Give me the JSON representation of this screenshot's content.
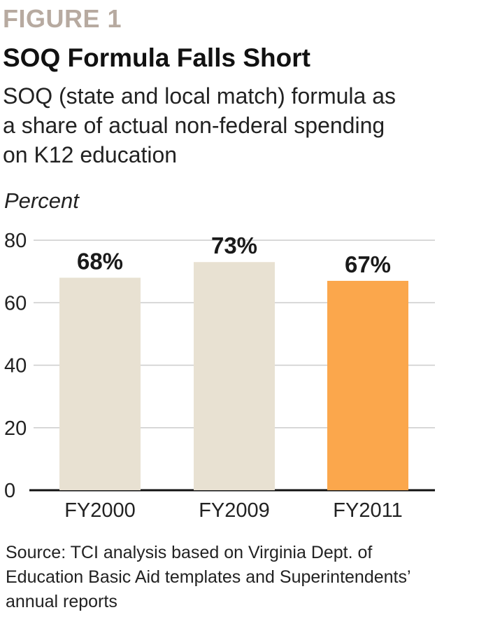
{
  "header": {
    "figure_label": "FIGURE 1",
    "title": "SOQ Formula Falls Short",
    "subtitle_lines": [
      "SOQ (state and local match) formula as",
      "a share of actual non-federal spending",
      "on K12 education"
    ]
  },
  "source_lines": [
    "Source: TCI analysis based on Virginia Dept. of",
    "Education Basic Aid templates and Superintendents’",
    "annual reports"
  ],
  "colors": {
    "bar_default": "#e8e1d2",
    "bar_highlight": "#fba74c",
    "grid": "#cccccc",
    "baseline": "#111111"
  },
  "chart_data": {
    "type": "bar",
    "title": "SOQ Formula Falls Short",
    "ylabel": "Percent",
    "xlabel": "",
    "categories": [
      "FY2000",
      "FY2009",
      "FY2011"
    ],
    "values": [
      68,
      73,
      67
    ],
    "data_labels": [
      "68%",
      "73%",
      "67%"
    ],
    "highlight": [
      false,
      false,
      true
    ],
    "ylim": [
      0,
      80
    ],
    "yticks": [
      0,
      20,
      40,
      60,
      80
    ],
    "grid": true,
    "legend": "none"
  }
}
